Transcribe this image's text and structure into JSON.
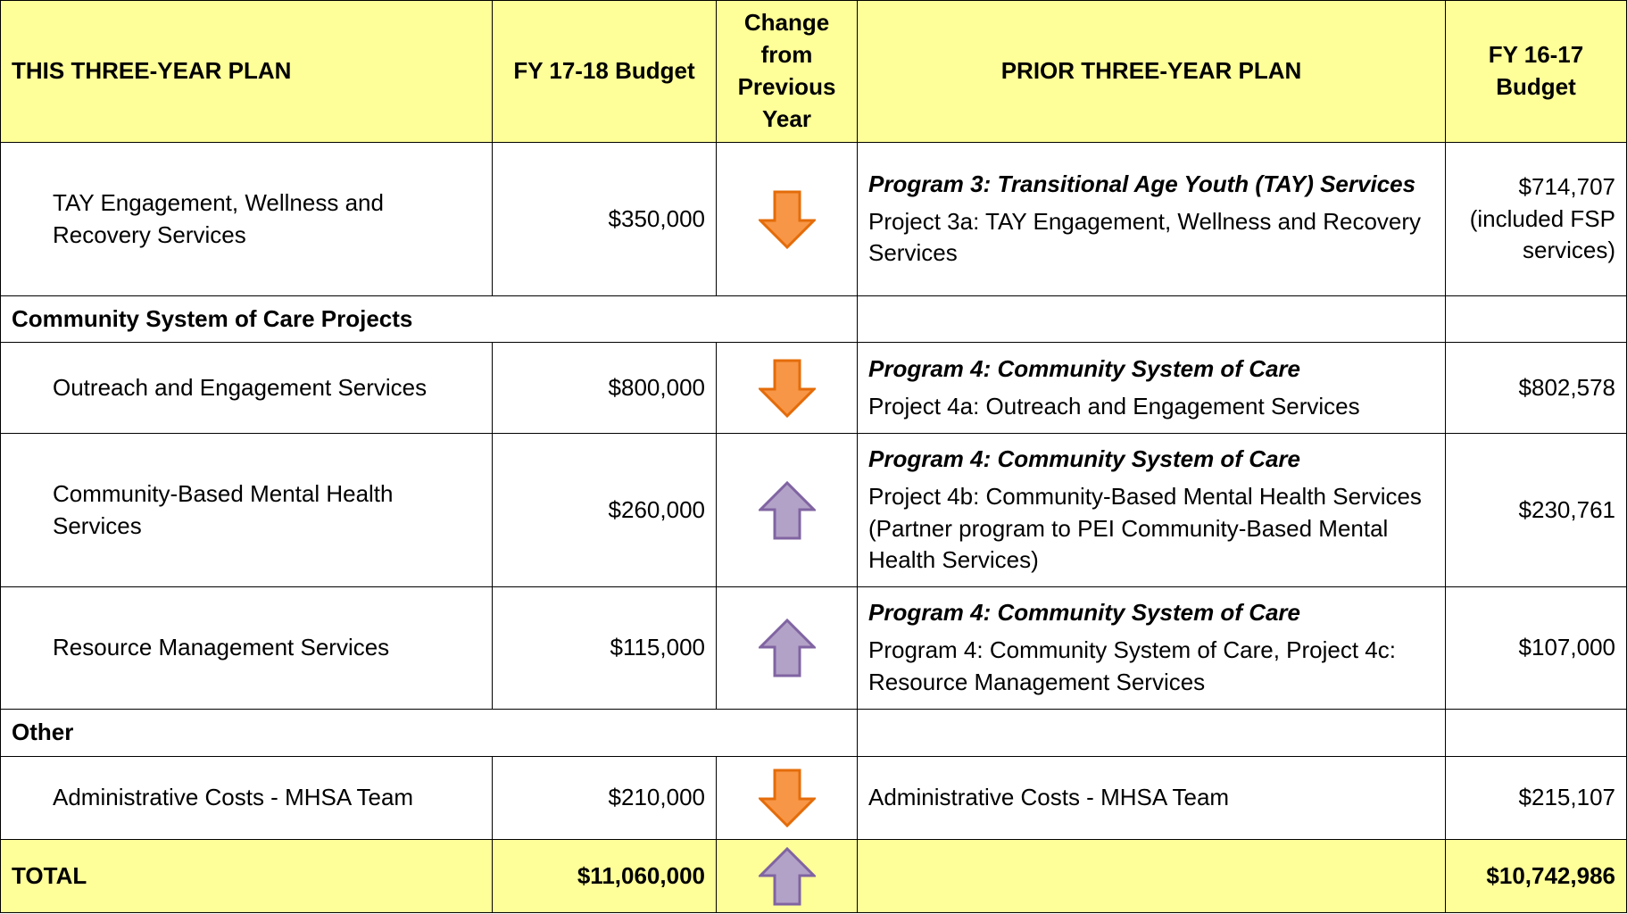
{
  "table": {
    "header": [
      "THIS THREE-YEAR PLAN",
      "FY 17-18 Budget",
      "Change from Previous Year",
      "PRIOR THREE-YEAR PLAN",
      "FY 16-17 Budget"
    ],
    "rows": [
      {
        "name": "TAY Engagement, Wellness and Recovery Services",
        "budget": "$350,000",
        "program": "Program 3: Transitional Age Youth (TAY) Services",
        "project": "Project 3a: TAY Engagement, Wellness and Recovery Services",
        "prior_budget": "$714,707",
        "prior_note": "(included FSP services)"
      },
      {
        "section": "Community System of Care Projects"
      },
      {
        "name": "Outreach and Engagement Services",
        "budget": "$800,000",
        "program": "Program 4:  Community System of Care",
        "project": "Project 4a: Outreach and Engagement Services",
        "prior_budget": "$802,578"
      },
      {
        "name": "Community-Based Mental Health Services",
        "budget": "$260,000",
        "program": "Program 4:  Community System of Care",
        "project": "Project 4b: Community-Based Mental Health Services (Partner program to PEI Community-Based Mental Health Services)",
        "prior_budget": "$230,761"
      },
      {
        "name": "Resource Management Services",
        "budget": "$115,000",
        "program": "Program 4:  Community System of Care",
        "project": "Program 4:  Community System of Care, Project 4c: Resource Management Services",
        "prior_budget": "$107,000"
      },
      {
        "section": "Other"
      },
      {
        "name": "Administrative Costs - MHSA Team",
        "budget": "$210,000",
        "project": "Administrative Costs - MHSA Team",
        "prior_budget": "$215,107"
      },
      {
        "name": "TOTAL",
        "budget": "$11,060,000",
        "prior_budget": "$10,742,986"
      }
    ]
  }
}
